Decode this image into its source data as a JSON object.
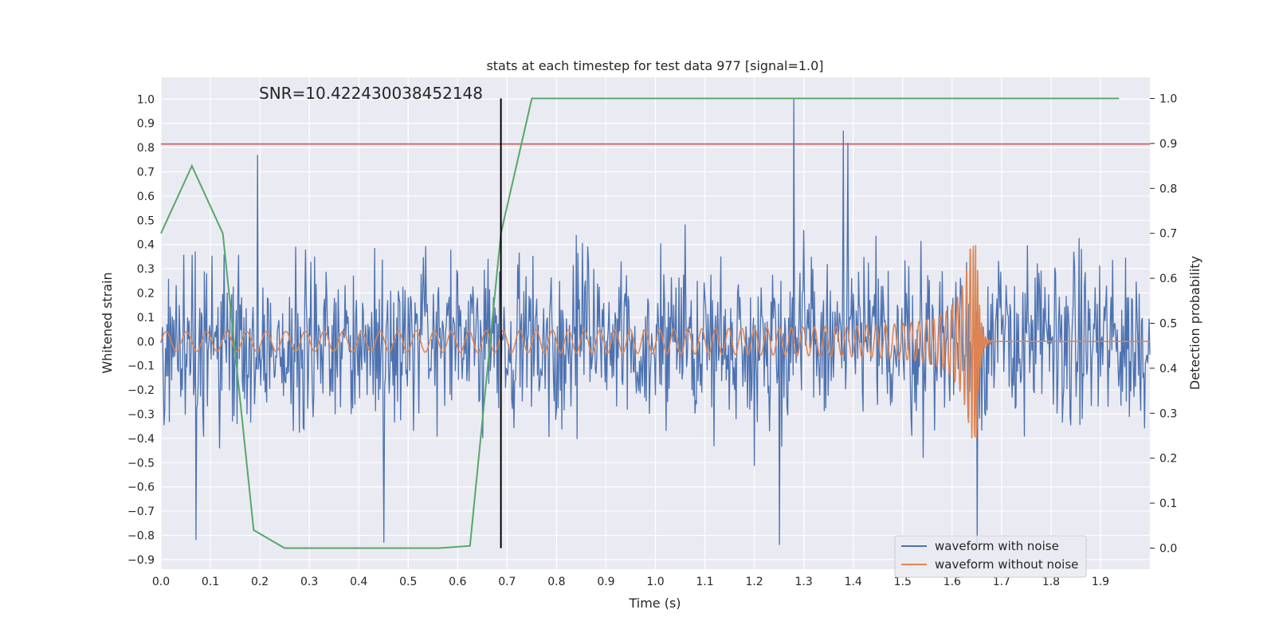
{
  "chart_data": {
    "type": "line",
    "title": "stats at each timestep for test data 977 [signal=1.0]",
    "xlabel": "Time (s)",
    "ylabel_left": "Whitened strain",
    "ylabel_right": "Detection probability",
    "xlim": [
      0.0,
      2.0
    ],
    "ylim_left": [
      -0.94,
      1.09
    ],
    "ylim_right": [
      -0.047,
      1.047
    ],
    "x_ticks": [
      "0.0",
      "0.1",
      "0.2",
      "0.3",
      "0.4",
      "0.5",
      "0.6",
      "0.7",
      "0.8",
      "0.9",
      "1.0",
      "1.1",
      "1.2",
      "1.3",
      "1.4",
      "1.5",
      "1.6",
      "1.7",
      "1.8",
      "1.9"
    ],
    "y_ticks_left": [
      "−0.9",
      "−0.8",
      "−0.7",
      "−0.6",
      "−0.5",
      "−0.4",
      "−0.3",
      "−0.2",
      "−0.1",
      "0.0",
      "0.1",
      "0.2",
      "0.3",
      "0.4",
      "0.5",
      "0.6",
      "0.7",
      "0.8",
      "0.9",
      "1.0"
    ],
    "y_ticks_right": [
      "0.0",
      "0.1",
      "0.2",
      "0.3",
      "0.4",
      "0.5",
      "0.6",
      "0.7",
      "0.8",
      "0.9",
      "1.0"
    ],
    "grid": true,
    "annotation": "SNR=10.422430038452148",
    "legend_position": "lower-right",
    "series": [
      {
        "name": "waveform with noise",
        "axis": "left",
        "color": "#4c72b0",
        "description_type": "noisy-strain",
        "noise_amplitude": 0.25,
        "spikes": [
          [
            1.28,
            1.0
          ],
          [
            1.38,
            0.87
          ],
          [
            1.39,
            0.82
          ],
          [
            0.195,
            0.77
          ],
          [
            0.07,
            -0.82
          ],
          [
            1.25,
            -0.84
          ],
          [
            1.65,
            -0.85
          ],
          [
            0.45,
            -0.83
          ]
        ]
      },
      {
        "name": "waveform without noise",
        "axis": "left",
        "color": "#dd8452",
        "description_type": "chirp",
        "start_freq_hz": 24,
        "merger_time": 1.65,
        "peak_amplitude": 0.4,
        "start_amplitude": 0.04
      },
      {
        "name": "detection probability",
        "axis": "right",
        "color": "#55a868",
        "x": [
          0.0,
          0.0625,
          0.125,
          0.1875,
          0.25,
          0.5625,
          0.625,
          0.6875,
          0.75,
          1.9375
        ],
        "y": [
          0.7,
          0.85,
          0.7,
          0.04,
          0.0,
          0.0,
          0.005,
          0.7,
          1.0,
          1.0
        ]
      }
    ],
    "threshold_line": {
      "axis": "left",
      "value": 0.815,
      "color": "#c44e52"
    },
    "vertical_line": {
      "x": 0.6875,
      "color": "#000000"
    }
  }
}
